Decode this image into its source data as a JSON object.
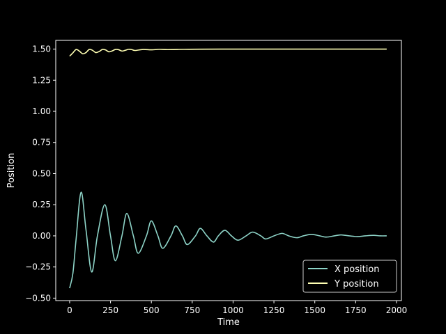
{
  "chart_data": {
    "type": "line",
    "title": "",
    "xlabel": "Time",
    "ylabel": "Position",
    "xlim": [
      -85,
      2030
    ],
    "ylim": [
      -0.52,
      1.57
    ],
    "xticks": [
      0,
      250,
      500,
      750,
      1000,
      1250,
      1500,
      1750,
      2000
    ],
    "xtick_labels": [
      "0",
      "250",
      "500",
      "750",
      "1000",
      "1250",
      "1500",
      "1750",
      "2000"
    ],
    "yticks": [
      -0.5,
      -0.25,
      0.0,
      0.25,
      0.5,
      0.75,
      1.0,
      1.25,
      1.5
    ],
    "ytick_labels": [
      "−0.50",
      "−0.25",
      "0.00",
      "0.25",
      "0.50",
      "0.75",
      "1.00",
      "1.25",
      "1.50"
    ],
    "grid": false,
    "legend_position": "bottom-right",
    "background": "#000000",
    "axis_color": "#ffffff",
    "series": [
      {
        "name": "X position",
        "color": "#8dd3c7",
        "x": [
          0,
          20,
          40,
          70,
          100,
          135,
          170,
          215,
          250,
          280,
          320,
          350,
          390,
          420,
          470,
          500,
          540,
          570,
          620,
          650,
          690,
          720,
          770,
          800,
          840,
          880,
          910,
          950,
          990,
          1030,
          1080,
          1120,
          1170,
          1200,
          1250,
          1300,
          1340,
          1390,
          1430,
          1480,
          1530,
          1570,
          1620,
          1660,
          1710,
          1760,
          1810,
          1860,
          1900,
          1940
        ],
        "y": [
          -0.42,
          -0.3,
          -0.02,
          0.35,
          0.05,
          -0.29,
          0.0,
          0.25,
          0.0,
          -0.2,
          0.0,
          0.18,
          0.0,
          -0.14,
          0.0,
          0.12,
          0.0,
          -0.1,
          0.0,
          0.08,
          0.0,
          -0.07,
          0.0,
          0.06,
          0.0,
          -0.05,
          0.0,
          0.045,
          0.0,
          -0.035,
          0.0,
          0.03,
          0.0,
          -0.025,
          0.0,
          0.02,
          0.0,
          -0.015,
          0.0,
          0.012,
          0.0,
          -0.01,
          0.0,
          0.008,
          0.0,
          -0.006,
          0.0,
          0.004,
          0.0,
          0.0
        ]
      },
      {
        "name": "Y position",
        "color": "#ffffb3",
        "x": [
          0,
          20,
          40,
          60,
          80,
          100,
          120,
          140,
          160,
          180,
          200,
          220,
          240,
          260,
          280,
          300,
          320,
          340,
          360,
          380,
          400,
          450,
          500,
          550,
          600,
          700,
          800,
          1000,
          1200,
          1500,
          1940
        ],
        "y": [
          1.443,
          1.47,
          1.497,
          1.483,
          1.462,
          1.472,
          1.497,
          1.49,
          1.472,
          1.48,
          1.497,
          1.493,
          1.478,
          1.485,
          1.497,
          1.495,
          1.484,
          1.49,
          1.498,
          1.496,
          1.489,
          1.497,
          1.494,
          1.498,
          1.496,
          1.498,
          1.499,
          1.5,
          1.5,
          1.5,
          1.5
        ]
      }
    ]
  }
}
